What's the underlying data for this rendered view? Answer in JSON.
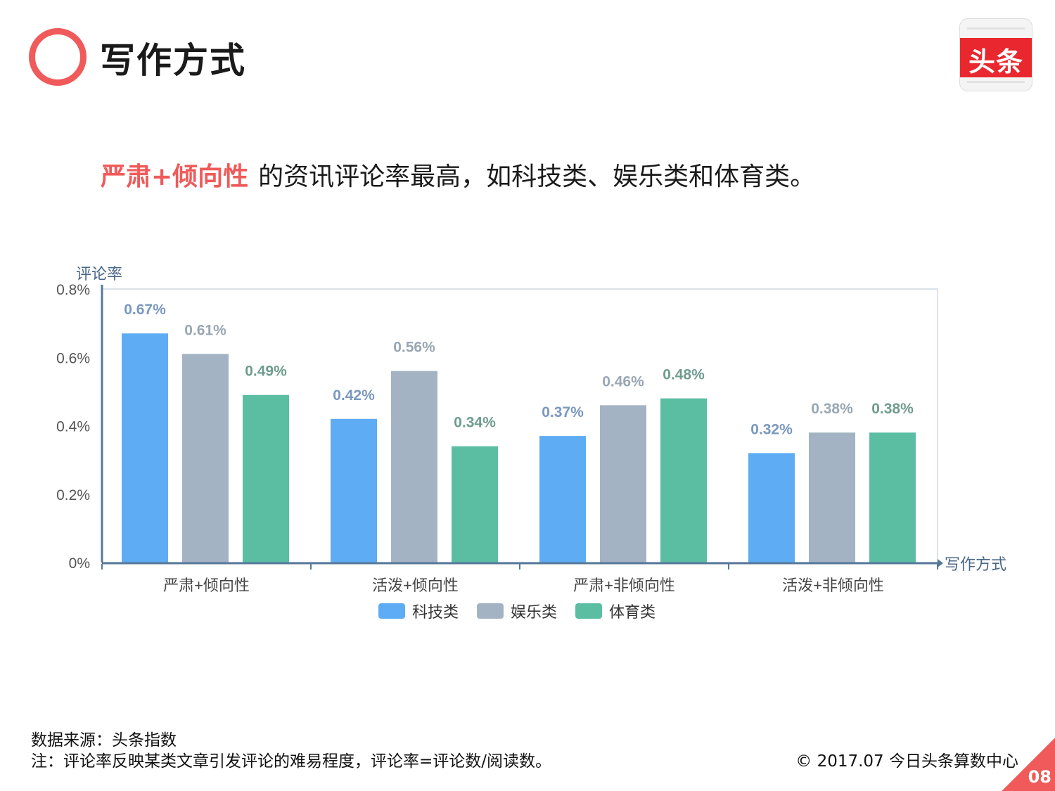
{
  "header": {
    "title": "写作方式",
    "logo_text": "头条"
  },
  "subtitle": {
    "highlight": "严肃+倾向性",
    "rest": "的资讯评论率最高，如科技类、娱乐类和体育类。"
  },
  "chart_data": {
    "type": "bar",
    "title": "",
    "xlabel": "写作方式",
    "ylabel": "评论率",
    "ylim": [
      0,
      0.8
    ],
    "yticks": [
      0,
      0.2,
      0.4,
      0.6,
      0.8
    ],
    "ytick_labels": [
      "0%",
      "0.2%",
      "0.4%",
      "0.6%",
      "0.8%"
    ],
    "categories": [
      "严肃+倾向性",
      "活泼+倾向性",
      "严肃+非倾向性",
      "活泼+非倾向性"
    ],
    "series": [
      {
        "name": "科技类",
        "values": [
          0.67,
          0.42,
          0.37,
          0.32
        ],
        "labels": [
          "0.67%",
          "0.42%",
          "0.37%",
          "0.32%"
        ],
        "color": "#5eacf4",
        "label_color": "#7a98bf"
      },
      {
        "name": "娱乐类",
        "values": [
          0.61,
          0.56,
          0.46,
          0.38
        ],
        "labels": [
          "0.61%",
          "0.56%",
          "0.46%",
          "0.38%"
        ],
        "color": "#a4b3c3",
        "label_color": "#9aa7b4"
      },
      {
        "name": "体育类",
        "values": [
          0.49,
          0.34,
          0.48,
          0.38
        ],
        "labels": [
          "0.49%",
          "0.34%",
          "0.48%",
          "0.38%"
        ],
        "color": "#5bbea3",
        "label_color": "#6e9c8e"
      }
    ],
    "legend_position": "bottom",
    "grid": false
  },
  "footer": {
    "source": "数据来源：头条指数",
    "note": "注：评论率反映某类文章引发评论的难易程度，评论率=评论数/阅读数。",
    "copyright": "© 2017.07 今日头条算数中心",
    "page_number": "08"
  },
  "colors": {
    "accent": "#f05a5a",
    "axis": "#56789a",
    "logo_red": "#e8272e"
  }
}
